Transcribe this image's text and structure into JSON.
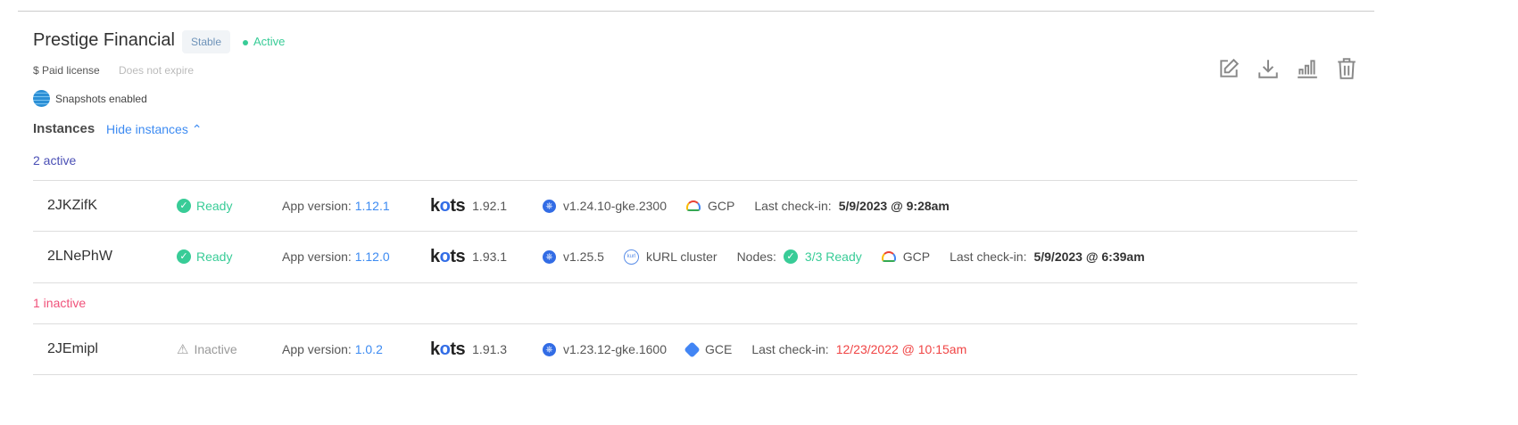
{
  "customer": {
    "name": "Prestige Financial",
    "channel": "Stable",
    "status": "Active",
    "license": "$ Paid license",
    "expiry": "Does not expire",
    "snapshots": "Snapshots enabled"
  },
  "instances": {
    "title": "Instances",
    "toggle": "Hide instances",
    "active_label": "2 active",
    "inactive_label": "1 inactive",
    "app_version_label": "App version:",
    "checkin_label": "Last check-in:",
    "nodes_label": "Nodes:",
    "rows": [
      {
        "id": "2JKZifK",
        "status": "Ready",
        "app_version": "1.12.1",
        "kots": "1.92.1",
        "k8s": "v1.24.10-gke.2300",
        "provider": "GCP",
        "checkin": "5/9/2023 @ 9:28am"
      },
      {
        "id": "2LNePhW",
        "status": "Ready",
        "app_version": "1.12.0",
        "kots": "1.93.1",
        "k8s": "v1.25.5",
        "distribution": "kURL cluster",
        "nodes": "3/3 Ready",
        "provider": "GCP",
        "checkin": "5/9/2023 @ 6:39am"
      },
      {
        "id": "2JEmipl",
        "status": "Inactive",
        "app_version": "1.0.2",
        "kots": "1.91.3",
        "k8s": "v1.23.12-gke.1600",
        "provider": "GCE",
        "checkin": "12/23/2022 @ 10:15am"
      }
    ]
  },
  "kots_logo": "kots",
  "colors": {
    "accent": "#3d8bf2",
    "ready": "#38cc97",
    "inactive": "#f0517a",
    "active_section": "#4a4fb5"
  },
  "actions": [
    "edit-icon",
    "download-icon",
    "chart-icon",
    "trash-icon"
  ]
}
